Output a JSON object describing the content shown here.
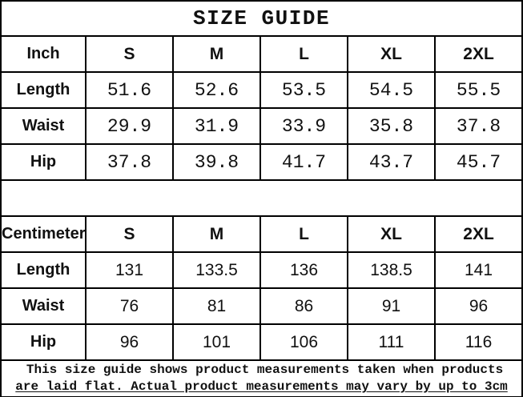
{
  "title": "SIZE GUIDE",
  "colors": {
    "background": "#ffffff",
    "border": "#000000",
    "text": "#111111"
  },
  "inch_table": {
    "unit_label": "Inch",
    "sizes": [
      "S",
      "M",
      "L",
      "XL",
      "2XL"
    ],
    "rows": [
      {
        "label": "Length",
        "values": [
          "51.6",
          "52.6",
          "53.5",
          "54.5",
          "55.5"
        ]
      },
      {
        "label": "Waist",
        "values": [
          "29.9",
          "31.9",
          "33.9",
          "35.8",
          "37.8"
        ]
      },
      {
        "label": "Hip",
        "values": [
          "37.8",
          "39.8",
          "41.7",
          "43.7",
          "45.7"
        ]
      }
    ]
  },
  "cm_table": {
    "unit_label": "Centimeter",
    "sizes": [
      "S",
      "M",
      "L",
      "XL",
      "2XL"
    ],
    "rows": [
      {
        "label": "Length",
        "values": [
          "131",
          "133.5",
          "136",
          "138.5",
          "141"
        ]
      },
      {
        "label": "Waist",
        "values": [
          "76",
          "81",
          "86",
          "91",
          "96"
        ]
      },
      {
        "label": "Hip",
        "values": [
          "96",
          "101",
          "106",
          "111",
          "116"
        ]
      }
    ]
  },
  "note": {
    "line1": "This size guide shows product measurements taken when products",
    "line2": "are laid flat. Actual product measurements may vary by up to 3cm"
  }
}
